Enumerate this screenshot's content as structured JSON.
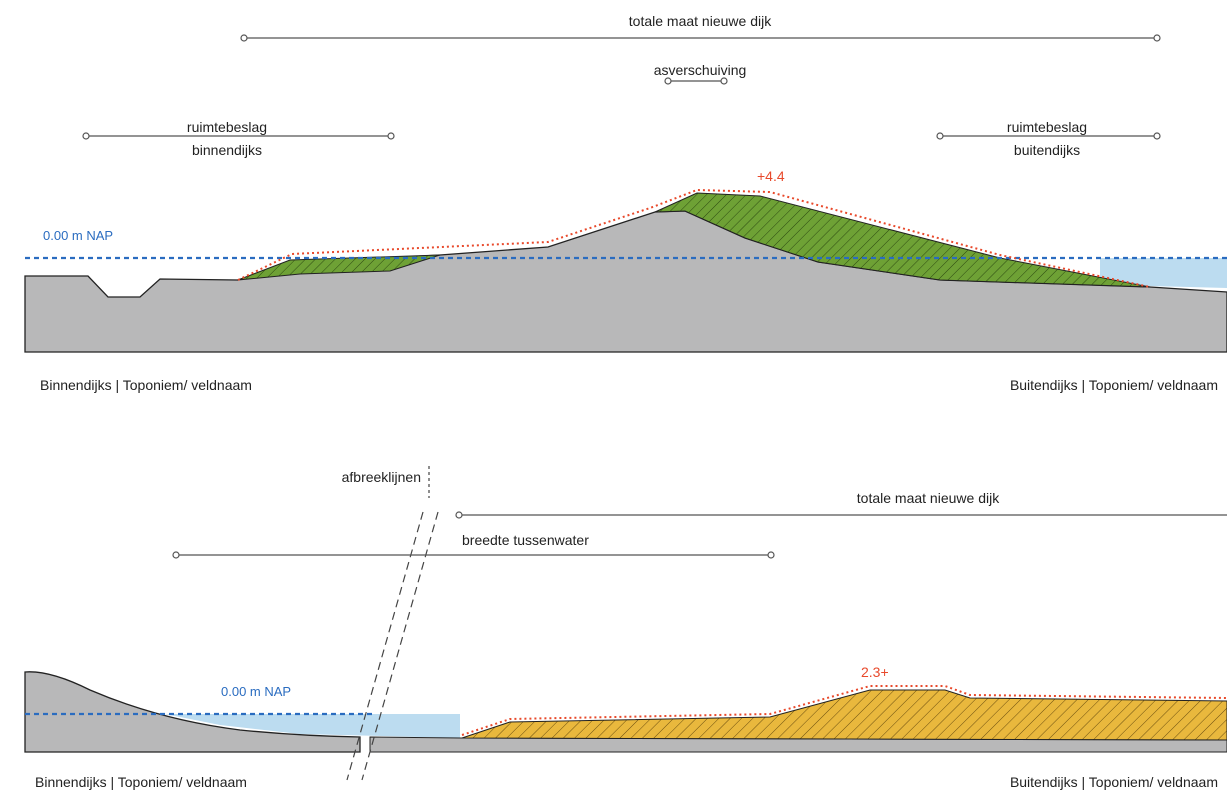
{
  "colors": {
    "ground": "#b8b8b9",
    "green_fill": "#6ea135",
    "yellow_fill": "#e9b83d",
    "water": "#bcdcf0",
    "nap_line": "#2a6cc0",
    "profile_line": "#e8492b",
    "dim_line": "#555555",
    "text": "#222222"
  },
  "top_section": {
    "total_width_label": "totale maat nieuwe dijk",
    "axis_shift_label": "asverschuiving",
    "space_inner_label_1": "ruimtebeslag",
    "space_inner_label_2": "binnendijks",
    "space_outer_label_1": "ruimtebeslag",
    "space_outer_label_2": "buitendijks",
    "crest_level": "+4.4",
    "nap_label": "0.00 m NAP",
    "left_caption": "Binnendijks | Toponiem/ veldnaam",
    "right_caption": "Buitendijks | Toponiem/ veldnaam"
  },
  "bottom_section": {
    "break_lines_label": "afbreeklijnen",
    "total_width_label": "totale maat nieuwe dijk",
    "intermediate_width_label": "breedte tussenwater",
    "crest_level": "2.3+",
    "nap_label": "0.00 m NAP",
    "left_caption": "Binnendijks | Toponiem/ veldnaam",
    "right_caption": "Buitendijks | Toponiem/ veldnaam"
  }
}
